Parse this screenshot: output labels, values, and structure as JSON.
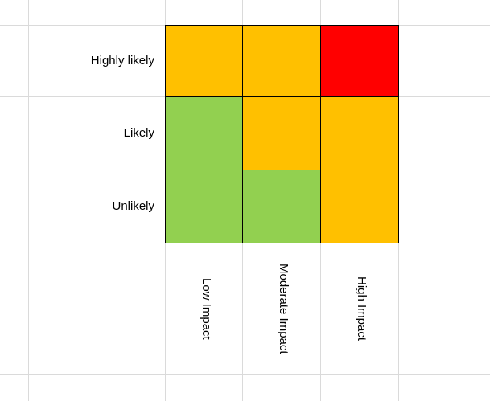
{
  "page": {
    "background_color": "#FFFFFF",
    "gridline_color": "#DADADA",
    "cell_border_color": "#000000",
    "text_color": "#000000"
  },
  "chart_data": {
    "type": "heatmap",
    "title": "",
    "subtitle": "",
    "rows": [
      "Highly likely",
      "Likely",
      "Unlikely"
    ],
    "columns": [
      "Low Impact",
      "Moderate Impact",
      "High Impact"
    ],
    "cells": [
      [
        "medium",
        "medium",
        "high"
      ],
      [
        "low",
        "medium",
        "medium"
      ],
      [
        "low",
        "low",
        "medium"
      ]
    ],
    "legend": {
      "low": "#92D050",
      "medium": "#FFC000",
      "high": "#FF0000"
    },
    "layout_hints": {
      "row_labels_position": "left",
      "column_labels_position": "bottom-rotated-90",
      "grid": "faint spreadsheet gridlines",
      "legend_shown": false
    }
  }
}
